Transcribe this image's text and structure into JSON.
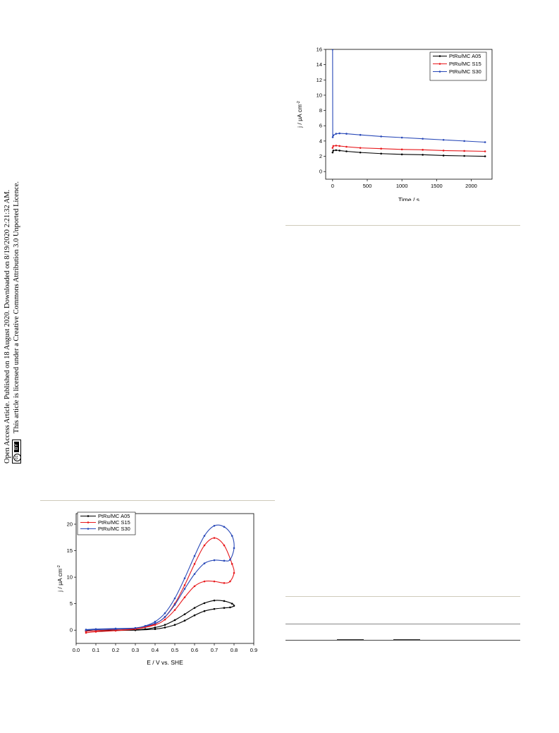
{
  "sidebar": {
    "line1": "Open Access Article. Published on 18 August 2020. Downloaded on 8/19/2020 2:21:32 AM.",
    "line2": "This article is licensed under a Creative Commons Attribution 3.0 Unported Licence.",
    "license_badge": "cc BY"
  },
  "chart_data": [
    {
      "type": "line",
      "xlabel": "Time / s",
      "ylabel": "j / μA cm",
      "ylabel_sup": "-2",
      "xlim": [
        -100,
        2300
      ],
      "ylim": [
        -1,
        16
      ],
      "xticks": [
        0,
        500,
        1000,
        1500,
        2000
      ],
      "yticks": [
        0,
        2,
        4,
        6,
        8,
        10,
        12,
        14,
        16
      ],
      "legend_position": "top-right",
      "series": [
        {
          "name": "PtRu/MC A05",
          "color": "#000000",
          "x": [
            0,
            10,
            50,
            100,
            200,
            400,
            700,
            1000,
            1300,
            1600,
            1900,
            2200
          ],
          "y": [
            2.5,
            2.75,
            2.8,
            2.75,
            2.65,
            2.5,
            2.35,
            2.25,
            2.2,
            2.1,
            2.05,
            2.0
          ]
        },
        {
          "name": "PtRu/MC S15",
          "color": "#e8191c",
          "x": [
            0,
            10,
            50,
            100,
            200,
            400,
            700,
            1000,
            1300,
            1600,
            1900,
            2200
          ],
          "y": [
            3.1,
            3.35,
            3.4,
            3.35,
            3.25,
            3.1,
            3.0,
            2.9,
            2.85,
            2.75,
            2.7,
            2.65
          ]
        },
        {
          "name": "PtRu/MC S30",
          "color": "#2949b8",
          "x": [
            0,
            2,
            10,
            50,
            100,
            200,
            400,
            700,
            1000,
            1300,
            1600,
            1900,
            2200
          ],
          "y": [
            16,
            4.5,
            4.75,
            4.95,
            5.0,
            4.95,
            4.8,
            4.6,
            4.45,
            4.3,
            4.15,
            4.0,
            3.85
          ]
        }
      ]
    },
    {
      "type": "line",
      "xlabel": "E / V vs. SHE",
      "ylabel": "j / μA cm",
      "ylabel_sup": "-2",
      "xlim": [
        0.0,
        0.9
      ],
      "ylim": [
        -2.5,
        22
      ],
      "xticks": [
        0.0,
        0.1,
        0.2,
        0.3,
        0.4,
        0.5,
        0.6,
        0.7,
        0.8,
        0.9
      ],
      "yticks": [
        0,
        5,
        10,
        15,
        20
      ],
      "legend_position": "top-left",
      "series": [
        {
          "name": "PtRu/MC A05",
          "color": "#000000",
          "x": [
            0.05,
            0.1,
            0.2,
            0.3,
            0.4,
            0.45,
            0.5,
            0.55,
            0.6,
            0.65,
            0.7,
            0.75,
            0.78,
            0.8,
            0.79,
            0.75,
            0.7,
            0.65,
            0.6,
            0.55,
            0.5,
            0.45,
            0.4,
            0.35,
            0.3,
            0.2,
            0.1,
            0.05
          ],
          "y": [
            -0.2,
            -0.1,
            -0.05,
            0.0,
            0.2,
            0.5,
            1.0,
            1.8,
            2.8,
            3.6,
            4.0,
            4.2,
            4.3,
            4.6,
            5.0,
            5.5,
            5.6,
            5.1,
            4.2,
            3.0,
            1.9,
            1.0,
            0.5,
            0.2,
            0.05,
            -0.05,
            -0.1,
            -0.1
          ]
        },
        {
          "name": "PtRu/MC S15",
          "color": "#e8191c",
          "x": [
            0.05,
            0.1,
            0.2,
            0.3,
            0.4,
            0.45,
            0.5,
            0.55,
            0.6,
            0.65,
            0.7,
            0.75,
            0.78,
            0.8,
            0.79,
            0.75,
            0.7,
            0.65,
            0.6,
            0.55,
            0.5,
            0.45,
            0.4,
            0.35,
            0.3,
            0.2,
            0.1,
            0.05
          ],
          "y": [
            -0.5,
            -0.3,
            -0.1,
            0.2,
            1.0,
            2.0,
            3.8,
            6.2,
            8.3,
            9.2,
            9.2,
            8.9,
            9.2,
            10.8,
            12.5,
            16.0,
            17.4,
            16.0,
            12.5,
            8.5,
            5.0,
            2.5,
            1.2,
            0.6,
            0.3,
            0.1,
            -0.1,
            -0.2
          ]
        },
        {
          "name": "PtRu/MC S30",
          "color": "#2949b8",
          "x": [
            0.05,
            0.1,
            0.2,
            0.3,
            0.4,
            0.45,
            0.5,
            0.55,
            0.6,
            0.65,
            0.7,
            0.75,
            0.78,
            0.8,
            0.79,
            0.75,
            0.7,
            0.65,
            0.6,
            0.55,
            0.5,
            0.45,
            0.4,
            0.35,
            0.3,
            0.2,
            0.1,
            0.05
          ],
          "y": [
            0.0,
            0.1,
            0.2,
            0.4,
            1.3,
            2.5,
            4.8,
            7.8,
            10.6,
            12.6,
            13.2,
            13.1,
            13.3,
            15.5,
            17.8,
            19.5,
            19.7,
            17.8,
            14.0,
            9.8,
            6.0,
            3.2,
            1.6,
            0.8,
            0.4,
            0.3,
            0.2,
            0.1
          ]
        }
      ]
    }
  ]
}
